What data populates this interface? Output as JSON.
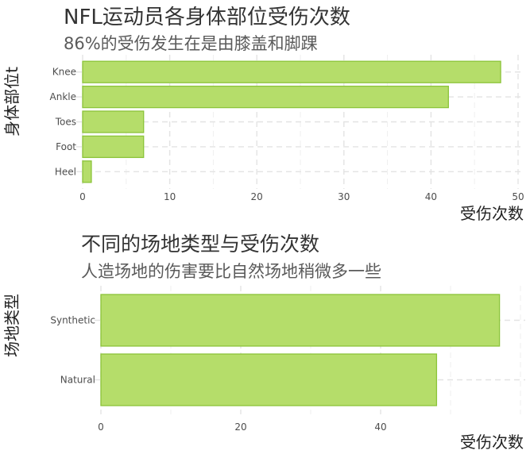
{
  "chart_data": [
    {
      "type": "bar",
      "orientation": "horizontal",
      "title": "NFL运动员各身体部位受伤次数",
      "subtitle": "86%的受伤发生在是由膝盖和脚踝",
      "xlabel": "受伤次数",
      "ylabel": "身体部位t",
      "categories": [
        "Knee",
        "Ankle",
        "Toes",
        "Foot",
        "Heel"
      ],
      "values": [
        48,
        42,
        7,
        7,
        1
      ],
      "xlim": [
        0,
        50
      ],
      "xticks": [
        "0",
        "10",
        "20",
        "30",
        "40",
        "50"
      ],
      "grid": true,
      "bar_color": "#b5dd6a",
      "bar_edge_color": "#8cc43a"
    },
    {
      "type": "bar",
      "orientation": "horizontal",
      "title": "不同的场地类型与受伤次数",
      "subtitle": "人造场地的伤害要比自然场地稍微多一些",
      "xlabel": "受伤次数",
      "ylabel": "场地类型",
      "categories": [
        "Synthetic",
        "Natural"
      ],
      "values": [
        57,
        48
      ],
      "xlim": [
        0,
        60
      ],
      "xticks": [
        "0",
        "20",
        "40"
      ],
      "grid": true,
      "bar_color": "#b5dd6a",
      "bar_edge_color": "#8cc43a"
    }
  ]
}
